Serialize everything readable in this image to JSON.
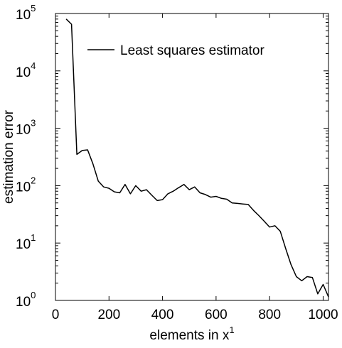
{
  "chart_data": {
    "type": "line",
    "xlabel": "elements in x",
    "xlabel_superscript": "1",
    "ylabel": "estimation error",
    "yscale": "log",
    "xlim": [
      0,
      1020
    ],
    "ylim": [
      1,
      100000
    ],
    "x_ticks": [
      0,
      200,
      400,
      600,
      800,
      1000
    ],
    "y_ticks": [
      {
        "base": "10",
        "exp": "0",
        "value": 1
      },
      {
        "base": "10",
        "exp": "1",
        "value": 10
      },
      {
        "base": "10",
        "exp": "2",
        "value": 100
      },
      {
        "base": "10",
        "exp": "3",
        "value": 1000
      },
      {
        "base": "10",
        "exp": "4",
        "value": 10000
      },
      {
        "base": "10",
        "exp": "5",
        "value": 100000
      }
    ],
    "grid": false,
    "legend": "top-right",
    "series": [
      {
        "name": "Least squares estimator",
        "color": "#000000",
        "x": [
          40,
          60,
          80,
          100,
          120,
          140,
          160,
          180,
          200,
          220,
          240,
          260,
          280,
          300,
          320,
          340,
          360,
          380,
          400,
          420,
          440,
          460,
          480,
          500,
          520,
          540,
          560,
          580,
          600,
          620,
          640,
          660,
          680,
          700,
          720,
          740,
          760,
          780,
          800,
          820,
          840,
          860,
          880,
          900,
          920,
          940,
          960,
          980,
          1000,
          1020
        ],
        "y": [
          80000,
          65000,
          350,
          410,
          420,
          240,
          120,
          95,
          90,
          78,
          75,
          105,
          72,
          100,
          80,
          85,
          68,
          55,
          57,
          72,
          80,
          92,
          105,
          85,
          95,
          75,
          70,
          63,
          65,
          60,
          58,
          50,
          49,
          48,
          47,
          37,
          30,
          24,
          19,
          20,
          16,
          8,
          4.2,
          2.6,
          2.2,
          2.6,
          2.5,
          1.3,
          1.9,
          1.15
        ]
      }
    ]
  }
}
